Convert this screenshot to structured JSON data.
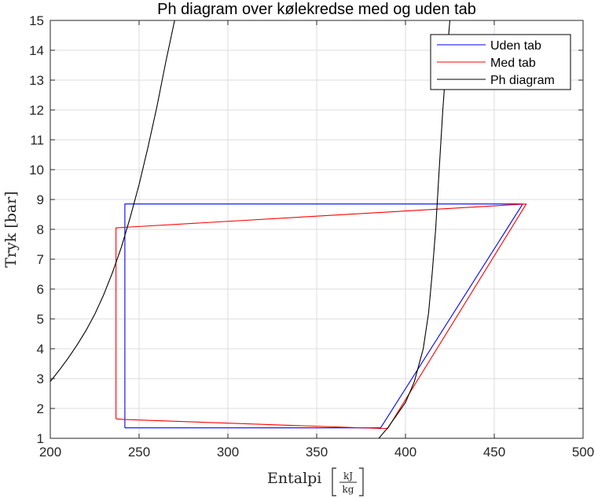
{
  "chart_data": {
    "type": "line",
    "title": "Ph diagram over kølekredse med og uden tab",
    "xlabel": "Entalpi",
    "xlabel_unit_num": "kJ",
    "xlabel_unit_den": "kg",
    "ylabel": "Tryk [bar]",
    "xlim": [
      200,
      500
    ],
    "ylim": [
      1,
      15
    ],
    "xticks": [
      "200",
      "250",
      "300",
      "350",
      "400",
      "450",
      "500"
    ],
    "yticks": [
      "1",
      "2",
      "3",
      "4",
      "5",
      "6",
      "7",
      "8",
      "9",
      "10",
      "11",
      "12",
      "13",
      "14",
      "15"
    ],
    "grid": true,
    "legend_position": "top-right",
    "series": [
      {
        "name": "Uden tab",
        "color": "#0000ff",
        "points": [
          [
            242,
            1.35
          ],
          [
            386,
            1.35
          ],
          [
            466,
            8.85
          ],
          [
            242,
            8.85
          ],
          [
            242,
            1.35
          ]
        ]
      },
      {
        "name": "Med tab",
        "color": "#ff0000",
        "points": [
          [
            237,
            1.65
          ],
          [
            242,
            1.63
          ],
          [
            386,
            1.33
          ],
          [
            390,
            1.33
          ],
          [
            468,
            8.85
          ],
          [
            245,
            8.08
          ],
          [
            237,
            8.05
          ],
          [
            237,
            1.65
          ]
        ]
      },
      {
        "name": "Ph diagram",
        "color": "#000000",
        "points": [
          [
            200,
            2.9
          ],
          [
            205,
            3.28
          ],
          [
            210,
            3.68
          ],
          [
            215,
            4.12
          ],
          [
            220,
            4.6
          ],
          [
            225,
            5.15
          ],
          [
            230,
            5.8
          ],
          [
            235,
            6.55
          ],
          [
            240,
            7.4
          ],
          [
            245,
            8.4
          ],
          [
            250,
            9.5
          ],
          [
            255,
            10.75
          ],
          [
            260,
            12.1
          ],
          [
            265,
            13.6
          ],
          [
            270,
            15.0
          ]
        ]
      },
      {
        "name": "",
        "color": "#000000",
        "points": [
          [
            385,
            1.0
          ],
          [
            390,
            1.35
          ],
          [
            400,
            2.2
          ],
          [
            405,
            2.9
          ],
          [
            410,
            4.0
          ],
          [
            413,
            5.2
          ],
          [
            415,
            6.5
          ],
          [
            417,
            8.0
          ],
          [
            419,
            10.0
          ],
          [
            421,
            12.0
          ],
          [
            423,
            13.6
          ],
          [
            425,
            15.0
          ]
        ]
      }
    ]
  }
}
